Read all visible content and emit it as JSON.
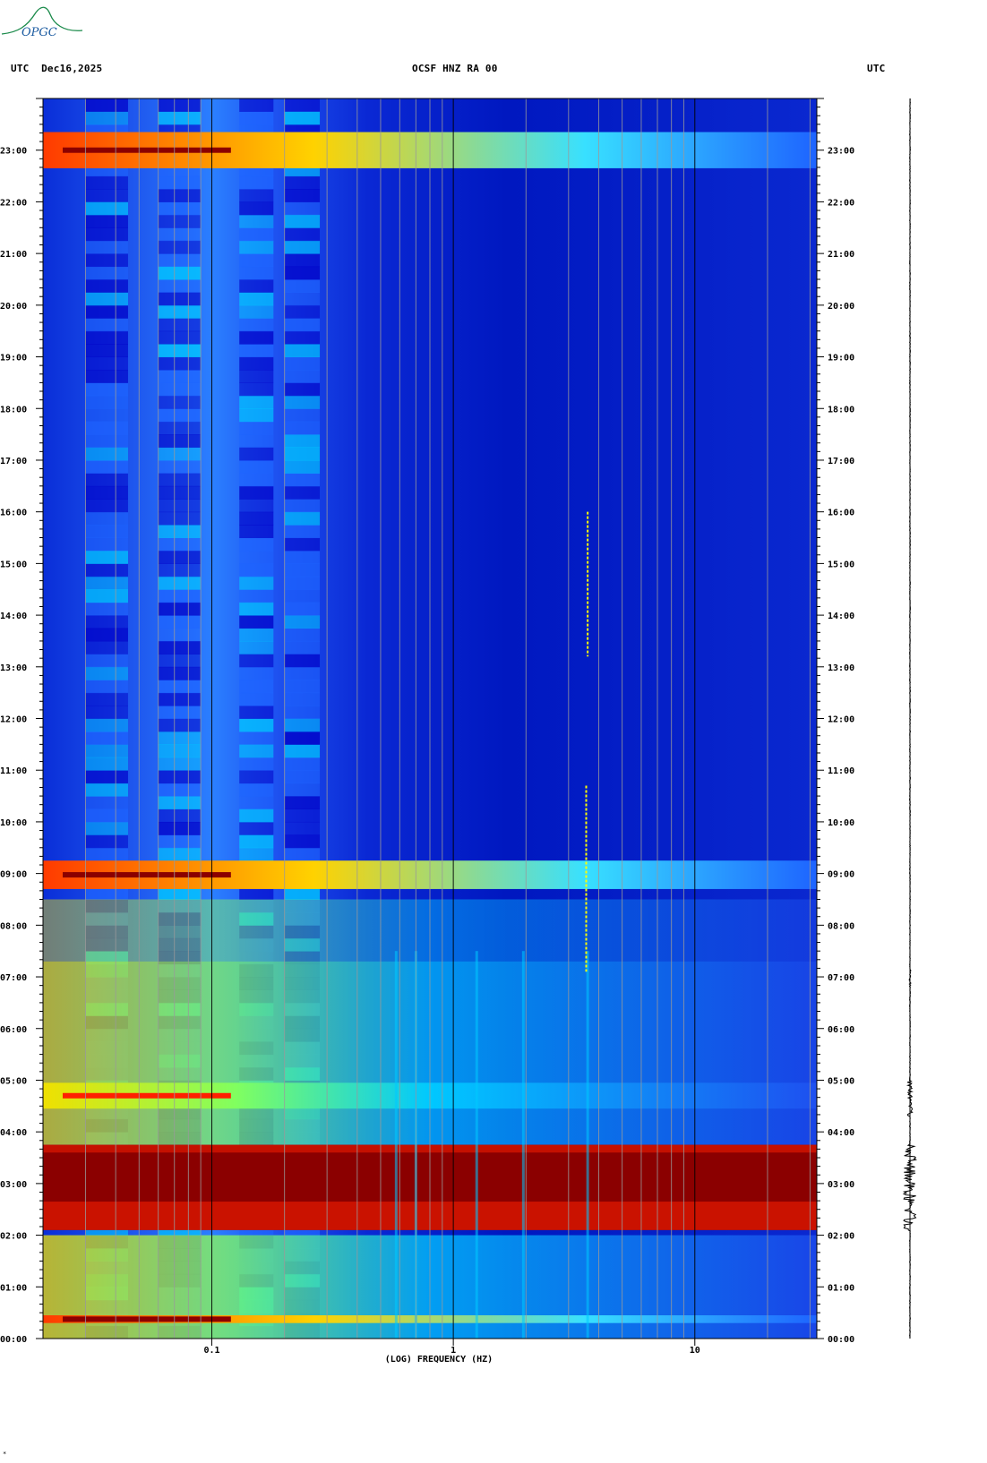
{
  "header": {
    "left": "UTC  Dec16,2025",
    "center": "OCSF HNZ RA 00",
    "right": "UTC"
  },
  "logo": {
    "text": "OPGC",
    "color": "#1a8a4a"
  },
  "footer": {
    "mark": "*"
  },
  "chart_data": {
    "type": "heatmap",
    "title": "OCSF HNZ RA 00",
    "xlabel": "(LOG) FREQUENCY (HZ)",
    "ylabel": "UTC",
    "x_scale": "log",
    "xlim": [
      0.02,
      32
    ],
    "ylim_hours": [
      0,
      24
    ],
    "x_ticks": [
      "0.1",
      "1",
      "10"
    ],
    "y_ticks": [
      "00:00",
      "01:00",
      "02:00",
      "03:00",
      "04:00",
      "05:00",
      "06:00",
      "07:00",
      "08:00",
      "09:00",
      "10:00",
      "11:00",
      "12:00",
      "13:00",
      "14:00",
      "15:00",
      "16:00",
      "17:00",
      "18:00",
      "19:00",
      "20:00",
      "21:00",
      "22:00",
      "23:00"
    ],
    "colormap": [
      "#0000c8",
      "#1e64ff",
      "#00c8ff",
      "#ffff00",
      "#ff2000",
      "#8b0000"
    ],
    "events": [
      {
        "name": "strong band",
        "start": 2.1,
        "end": 3.75,
        "level": 5
      },
      {
        "name": "band",
        "start": 4.45,
        "end": 4.95,
        "level": 3
      },
      {
        "name": "band",
        "start": 8.7,
        "end": 9.25,
        "level": 4
      },
      {
        "name": "band",
        "start": 22.65,
        "end": 23.35,
        "level": 4
      },
      {
        "name": "band",
        "start": 0.3,
        "end": 0.45,
        "level": 4
      }
    ],
    "spectral_lines_hz": [
      0.58,
      0.7,
      1.25,
      1.95,
      3.6
    ]
  }
}
